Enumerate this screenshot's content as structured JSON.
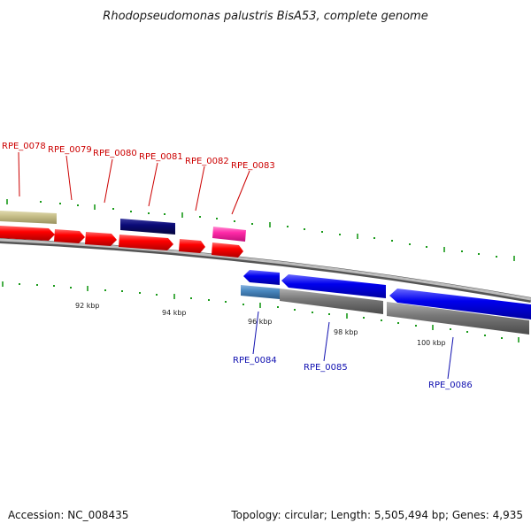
{
  "title": "Rhodopseudomonas palustris BisA53, complete genome",
  "footer": {
    "accession": "Accession: NC_008435",
    "topology": "Topology: circular; Length: 5,505,494 bp; Genes: 4,935"
  },
  "scale_labels": [
    "92 kbp",
    "94 kbp",
    "96 kbp",
    "98 kbp",
    "100 kbp"
  ],
  "genes_forward": [
    {
      "id": "RPE_0078",
      "color": "#c8c08a"
    },
    {
      "id": "RPE_0079",
      "color": "#ff0000"
    },
    {
      "id": "RPE_0080",
      "color": "#ff0000"
    },
    {
      "id": "RPE_0081",
      "color": "#0a0a78"
    },
    {
      "id": "RPE_0082",
      "color": "#ff0000"
    },
    {
      "id": "RPE_0083",
      "color": "#ff2aa8"
    }
  ],
  "genes_reverse": [
    {
      "id": "RPE_0084",
      "color": "#4a88c0"
    },
    {
      "id": "RPE_0085",
      "color": "#0000ee"
    },
    {
      "id": "RPE_0086",
      "color": "#0000ee"
    }
  ],
  "colors": {
    "forward_label": "#cc0000",
    "reverse_label": "#1010b0",
    "backbone": "#8a8a8a",
    "tick": "#1a9a1a",
    "cds_bar": "#7a7a7a"
  }
}
